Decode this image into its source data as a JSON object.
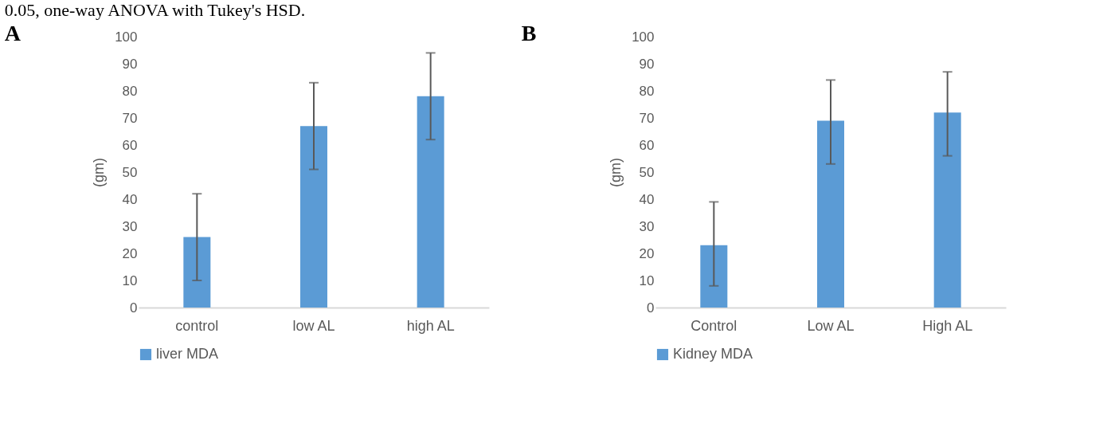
{
  "chart_data": [
    {
      "type": "bar",
      "title": "A",
      "ylabel": "(gm)",
      "categories": [
        "control",
        "low AL",
        "high AL"
      ],
      "series": [
        {
          "name": "liver MDA",
          "color": "#5b9bd5",
          "values": [
            26,
            67,
            78
          ],
          "errors": [
            [
              10,
              42
            ],
            [
              51,
              83
            ],
            [
              62,
              94
            ]
          ]
        }
      ],
      "ylim": [
        0,
        100
      ],
      "yticks": [
        0,
        10,
        20,
        30,
        40,
        50,
        60,
        70,
        80,
        90,
        100
      ],
      "grid": false,
      "legend": "bottom",
      "annotations": [
        "0.05, one-way ANOVA with Tukey's HSD."
      ]
    },
    {
      "type": "bar",
      "title": "B",
      "ylabel": "(gm)",
      "categories": [
        "Control",
        "Low AL",
        "High AL"
      ],
      "series": [
        {
          "name": "Kidney MDA",
          "color": "#5b9bd5",
          "values": [
            23,
            69,
            72
          ],
          "errors": [
            [
              8,
              39
            ],
            [
              53,
              84
            ],
            [
              56,
              87
            ]
          ]
        }
      ],
      "ylim": [
        0,
        100
      ],
      "yticks": [
        0,
        10,
        20,
        30,
        40,
        50,
        60,
        70,
        80,
        90,
        100
      ],
      "grid": false,
      "legend": "bottom"
    }
  ]
}
